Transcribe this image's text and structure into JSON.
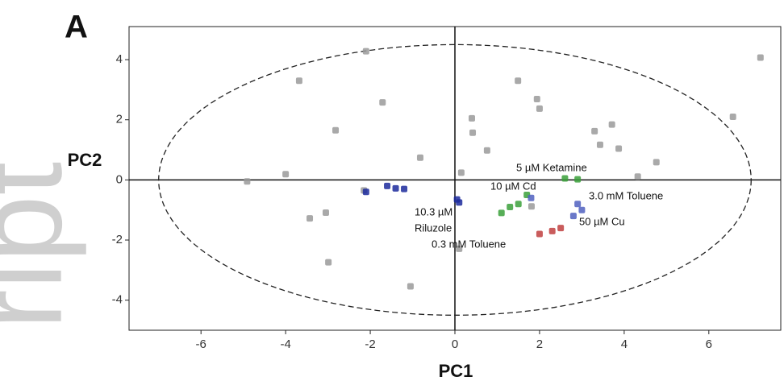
{
  "chart_data": {
    "type": "scatter",
    "panel_label": "A",
    "watermark": "ript",
    "x_label": "PC1",
    "y_label": "PC2",
    "xlim": [
      -7.7,
      7.7
    ],
    "ylim": [
      -5,
      5.1
    ],
    "xticks": [
      -6,
      -4,
      -2,
      0,
      2,
      4,
      6
    ],
    "yticks": [
      4,
      2,
      0,
      -2,
      -4
    ],
    "zero_lines": true,
    "confidence_ellipse": {
      "x_radius": 7,
      "y_radius": 4.5
    },
    "series": [
      {
        "color": "#9a9a9a",
        "x": [
          -2.1,
          -3.68,
          -1.71,
          -2.82,
          -0.82,
          -4.0,
          -4.91,
          -2.15,
          -3.05,
          -3.43,
          -2.99,
          -1.05,
          0.15,
          0.4,
          0.42,
          0.76,
          1.49,
          1.94,
          2.0,
          3.3,
          3.71,
          3.43,
          3.87,
          4.76,
          4.32,
          6.57,
          7.22,
          0.1,
          1.81
        ],
        "values": [
          4.28,
          3.3,
          2.58,
          1.65,
          0.74,
          0.19,
          -0.05,
          -0.35,
          -1.09,
          -1.28,
          -2.74,
          -3.54,
          0.24,
          2.05,
          1.57,
          0.98,
          3.3,
          2.69,
          2.37,
          1.62,
          1.84,
          1.17,
          1.04,
          0.59,
          0.11,
          2.1,
          4.07,
          -2.29,
          -0.88
        ]
      },
      {
        "color": "#1c2a9c",
        "x": [
          -1.6,
          -1.4,
          -1.2,
          -2.1,
          0.05,
          0.1
        ],
        "values": [
          -0.2,
          -0.28,
          -0.3,
          -0.4,
          -0.65,
          -0.75
        ]
      },
      {
        "color": "#3aa03a",
        "x": [
          1.3,
          1.5,
          1.7,
          1.1,
          2.6,
          2.9
        ],
        "values": [
          -0.9,
          -0.8,
          -0.5,
          -1.1,
          0.05,
          0.02
        ]
      },
      {
        "color": "#5060c0",
        "x": [
          1.8,
          2.9,
          2.8,
          3.0
        ],
        "values": [
          -0.6,
          -0.8,
          -1.2,
          -1.0
        ]
      },
      {
        "color": "#c04040",
        "x": [
          2.5,
          2.3,
          2.0
        ],
        "values": [
          -1.6,
          -1.7,
          -1.8
        ]
      }
    ],
    "annotations": [
      "5 µM Ketamine",
      "10 µM Cd",
      "10.3 µM",
      "Riluzole",
      "3.0 mM Toluene",
      "50 µM Cu",
      "0.3 mM Toluene"
    ]
  }
}
